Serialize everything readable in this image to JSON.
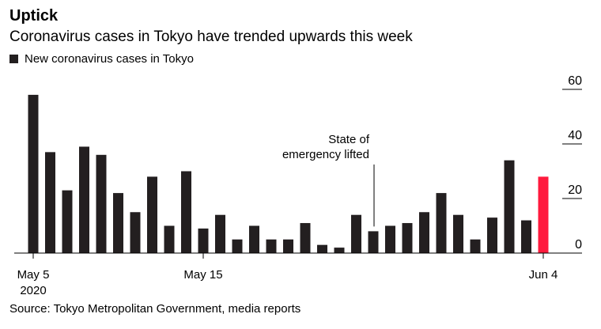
{
  "header": {
    "title": "Uptick",
    "subtitle": "Coronavirus cases in Tokyo have trended upwards this week"
  },
  "legend": {
    "label": "New coronavirus cases in Tokyo"
  },
  "footer": {
    "source": "Source: Tokyo Metropolitan Government, media reports"
  },
  "annotation": {
    "line1": "State of",
    "line2": "emergency lifted"
  },
  "colors": {
    "bar": "#231f20",
    "highlight": "#ff1a3d",
    "axis": "#000000"
  },
  "chart_data": {
    "type": "bar",
    "title": "Uptick",
    "subtitle": "Coronavirus cases in Tokyo have trended upwards this week",
    "xlabel": "",
    "ylabel": "",
    "ylim": [
      0,
      60
    ],
    "yticks": [
      0,
      20,
      40,
      60
    ],
    "series": [
      {
        "name": "New coronavirus cases in Tokyo"
      }
    ],
    "categories": [
      "May 5",
      "May 6",
      "May 7",
      "May 8",
      "May 9",
      "May 10",
      "May 11",
      "May 12",
      "May 13",
      "May 14",
      "May 15",
      "May 16",
      "May 17",
      "May 18",
      "May 19",
      "May 20",
      "May 21",
      "May 22",
      "May 23",
      "May 24",
      "May 25",
      "May 26",
      "May 27",
      "May 28",
      "May 29",
      "May 30",
      "May 31",
      "Jun 1",
      "Jun 2",
      "Jun 3",
      "Jun 4"
    ],
    "values": [
      58,
      37,
      23,
      39,
      36,
      22,
      15,
      28,
      10,
      30,
      9,
      14,
      5,
      10,
      5,
      5,
      11,
      3,
      2,
      14,
      8,
      10,
      11,
      15,
      22,
      14,
      5,
      13,
      34,
      12,
      28
    ],
    "highlight_index": 30,
    "x_tick_labels": [
      {
        "index": 0,
        "label": "May 5",
        "sublabel": "2020"
      },
      {
        "index": 10,
        "label": "May 15",
        "sublabel": ""
      },
      {
        "index": 30,
        "label": "Jun 4",
        "sublabel": ""
      }
    ],
    "annotations": [
      {
        "index": 20,
        "text": "State of emergency lifted"
      }
    ],
    "grid": false,
    "legend_position": "top-left"
  }
}
